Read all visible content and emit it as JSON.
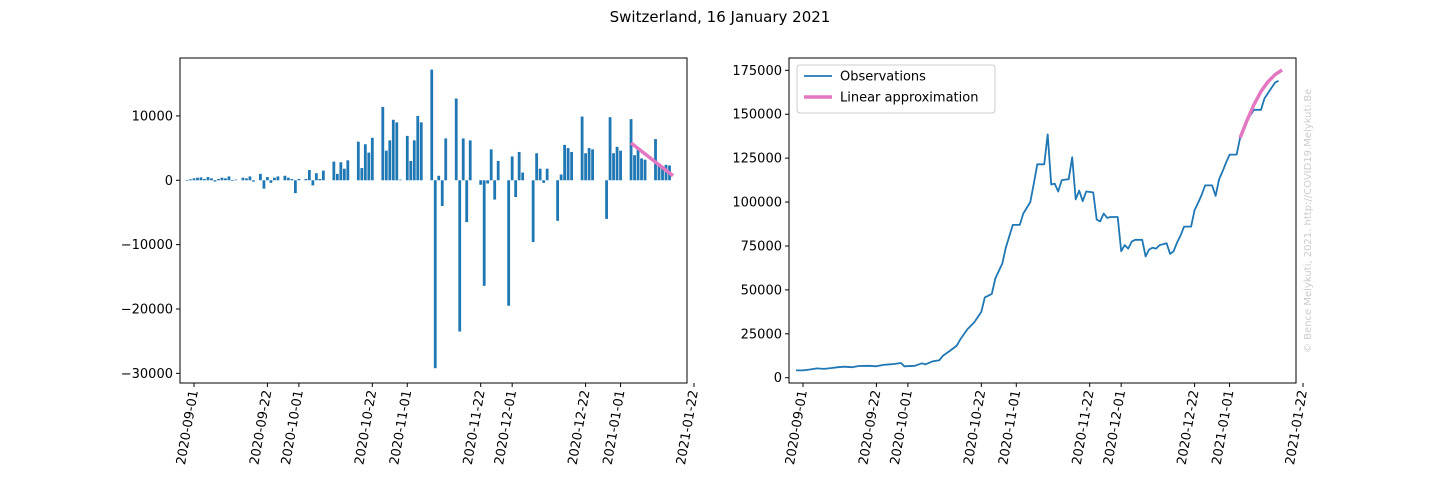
{
  "title": "Switzerland, 16 January 2021",
  "watermark": "© Bence Melykuti, 2021. http://COVID19.Melykuti.Be",
  "colors": {
    "observations": "#1f77b4",
    "approximation": "#e377c2",
    "axis": "#000000",
    "watermark": "#cccccc"
  },
  "chart_data": [
    {
      "type": "bar",
      "title": "",
      "xlabel": "",
      "ylabel": "",
      "xlim": [
        "2020-08-28",
        "2021-01-20"
      ],
      "ylim": [
        -31500,
        19000
      ],
      "xticks": [
        "2020-09-01",
        "2020-09-22",
        "2020-10-01",
        "2020-10-22",
        "2020-11-01",
        "2020-11-22",
        "2020-12-01",
        "2020-12-22",
        "2021-01-01",
        "2021-01-22"
      ],
      "yticks": [
        -30000,
        -20000,
        -10000,
        0,
        10000
      ],
      "ytick_labels": [
        "−30000",
        "−20000",
        "−10000",
        "0",
        "10000"
      ],
      "bars": [
        [
          "2020-08-30",
          -100
        ],
        [
          "2020-08-31",
          150
        ],
        [
          "2020-09-01",
          300
        ],
        [
          "2020-09-02",
          400
        ],
        [
          "2020-09-03",
          450
        ],
        [
          "2020-09-04",
          200
        ],
        [
          "2020-09-05",
          500
        ],
        [
          "2020-09-06",
          300
        ],
        [
          "2020-09-07",
          -200
        ],
        [
          "2020-09-08",
          200
        ],
        [
          "2020-09-09",
          400
        ],
        [
          "2020-09-10",
          300
        ],
        [
          "2020-09-11",
          600
        ],
        [
          "2020-09-12",
          -100
        ],
        [
          "2020-09-13",
          100
        ],
        [
          "2020-09-15",
          400
        ],
        [
          "2020-09-16",
          300
        ],
        [
          "2020-09-17",
          600
        ],
        [
          "2020-09-18",
          -200
        ],
        [
          "2020-09-20",
          1000
        ],
        [
          "2020-09-21",
          -1300
        ],
        [
          "2020-09-22",
          500
        ],
        [
          "2020-09-23",
          -400
        ],
        [
          "2020-09-24",
          400
        ],
        [
          "2020-09-25",
          600
        ],
        [
          "2020-09-27",
          700
        ],
        [
          "2020-09-28",
          400
        ],
        [
          "2020-09-29",
          200
        ],
        [
          "2020-09-30",
          -2000
        ],
        [
          "2020-10-01",
          200
        ],
        [
          "2020-10-03",
          200
        ],
        [
          "2020-10-04",
          1600
        ],
        [
          "2020-10-05",
          -800
        ],
        [
          "2020-10-06",
          1100
        ],
        [
          "2020-10-07",
          200
        ],
        [
          "2020-10-08",
          1500
        ],
        [
          "2020-10-11",
          2900
        ],
        [
          "2020-10-12",
          1000
        ],
        [
          "2020-10-13",
          2800
        ],
        [
          "2020-10-14",
          1800
        ],
        [
          "2020-10-15",
          3100
        ],
        [
          "2020-10-18",
          6000
        ],
        [
          "2020-10-19",
          1900
        ],
        [
          "2020-10-20",
          5600
        ],
        [
          "2020-10-21",
          4300
        ],
        [
          "2020-10-22",
          6600
        ],
        [
          "2020-10-25",
          11400
        ],
        [
          "2020-10-26",
          4600
        ],
        [
          "2020-10-27",
          6200
        ],
        [
          "2020-10-28",
          9400
        ],
        [
          "2020-10-29",
          9000
        ],
        [
          "2020-10-30",
          100
        ],
        [
          "2020-11-01",
          6900
        ],
        [
          "2020-11-02",
          3000
        ],
        [
          "2020-11-03",
          6200
        ],
        [
          "2020-11-04",
          10000
        ],
        [
          "2020-11-05",
          9000
        ],
        [
          "2020-11-08",
          17200
        ],
        [
          "2020-11-09",
          -29200
        ],
        [
          "2020-11-10",
          700
        ],
        [
          "2020-11-11",
          -4000
        ],
        [
          "2020-11-12",
          6500
        ],
        [
          "2020-11-15",
          12700
        ],
        [
          "2020-11-16",
          -23500
        ],
        [
          "2020-11-17",
          6500
        ],
        [
          "2020-11-18",
          -6500
        ],
        [
          "2020-11-19",
          6200
        ],
        [
          "2020-11-22",
          -700
        ],
        [
          "2020-11-23",
          -16400
        ],
        [
          "2020-11-24",
          -500
        ],
        [
          "2020-11-25",
          4800
        ],
        [
          "2020-11-26",
          -3000
        ],
        [
          "2020-11-27",
          3000
        ],
        [
          "2020-11-30",
          -19500
        ],
        [
          "2020-12-01",
          3700
        ],
        [
          "2020-12-02",
          -2600
        ],
        [
          "2020-12-03",
          4400
        ],
        [
          "2020-12-04",
          1200
        ],
        [
          "2020-12-07",
          -9600
        ],
        [
          "2020-12-08",
          4200
        ],
        [
          "2020-12-09",
          1800
        ],
        [
          "2020-12-10",
          -400
        ],
        [
          "2020-12-11",
          1800
        ],
        [
          "2020-12-14",
          -6300
        ],
        [
          "2020-12-15",
          900
        ],
        [
          "2020-12-16",
          5500
        ],
        [
          "2020-12-17",
          5000
        ],
        [
          "2020-12-18",
          4400
        ],
        [
          "2020-12-21",
          9900
        ],
        [
          "2020-12-22",
          4200
        ],
        [
          "2020-12-23",
          5000
        ],
        [
          "2020-12-24",
          4800
        ],
        [
          "2020-12-28",
          -6000
        ],
        [
          "2020-12-29",
          9800
        ],
        [
          "2020-12-30",
          4200
        ],
        [
          "2020-12-31",
          5200
        ],
        [
          "2021-01-01",
          4600
        ],
        [
          "2021-01-04",
          9500
        ],
        [
          "2021-01-05",
          3900
        ],
        [
          "2021-01-06",
          4900
        ],
        [
          "2021-01-07",
          3400
        ],
        [
          "2021-01-08",
          3200
        ],
        [
          "2021-01-11",
          6400
        ],
        [
          "2021-01-12",
          2600
        ],
        [
          "2021-01-13",
          2200
        ],
        [
          "2021-01-14",
          2400
        ],
        [
          "2021-01-15",
          2300
        ]
      ],
      "line": {
        "name": "Linear approximation",
        "x": [
          "2021-01-04",
          "2021-01-16"
        ],
        "y": [
          5800,
          700
        ]
      }
    },
    {
      "type": "line",
      "title": "",
      "xlabel": "",
      "ylabel": "",
      "xlim": [
        "2020-08-28",
        "2021-01-20"
      ],
      "ylim": [
        -3000,
        182000
      ],
      "xticks": [
        "2020-09-01",
        "2020-09-22",
        "2020-10-01",
        "2020-10-22",
        "2020-11-01",
        "2020-11-22",
        "2020-12-01",
        "2020-12-22",
        "2021-01-01",
        "2021-01-22"
      ],
      "yticks": [
        0,
        25000,
        50000,
        75000,
        100000,
        125000,
        150000,
        175000
      ],
      "legend": "top-left",
      "series": [
        {
          "name": "Observations",
          "points": [
            [
              "2020-08-30",
              4200
            ],
            [
              "2020-09-01",
              4200
            ],
            [
              "2020-09-03",
              4700
            ],
            [
              "2020-09-05",
              5300
            ],
            [
              "2020-09-07",
              5000
            ],
            [
              "2020-09-09",
              5500
            ],
            [
              "2020-09-11",
              6000
            ],
            [
              "2020-09-13",
              6300
            ],
            [
              "2020-09-15",
              6000
            ],
            [
              "2020-09-17",
              6700
            ],
            [
              "2020-09-20",
              6800
            ],
            [
              "2020-09-22",
              6500
            ],
            [
              "2020-09-24",
              7300
            ],
            [
              "2020-09-27",
              7800
            ],
            [
              "2020-09-29",
              8400
            ],
            [
              "2020-09-30",
              6500
            ],
            [
              "2020-10-03",
              6800
            ],
            [
              "2020-10-05",
              8200
            ],
            [
              "2020-10-06",
              7600
            ],
            [
              "2020-10-08",
              9300
            ],
            [
              "2020-10-10",
              10000
            ],
            [
              "2020-10-11",
              12400
            ],
            [
              "2020-10-13",
              15300
            ],
            [
              "2020-10-15",
              18300
            ],
            [
              "2020-10-16",
              21800
            ],
            [
              "2020-10-18",
              27500
            ],
            [
              "2020-10-20",
              31600
            ],
            [
              "2020-10-22",
              37500
            ],
            [
              "2020-10-23",
              45700
            ],
            [
              "2020-10-25",
              47700
            ],
            [
              "2020-10-26",
              56500
            ],
            [
              "2020-10-28",
              65000
            ],
            [
              "2020-10-29",
              74000
            ],
            [
              "2020-10-31",
              87000
            ],
            [
              "2020-11-02",
              87000
            ],
            [
              "2020-11-03",
              93500
            ],
            [
              "2020-11-05",
              100000
            ],
            [
              "2020-11-06",
              110500
            ],
            [
              "2020-11-07",
              121500
            ],
            [
              "2020-11-09",
              121500
            ],
            [
              "2020-11-10",
              138500
            ],
            [
              "2020-11-11",
              110000
            ],
            [
              "2020-11-12",
              110500
            ],
            [
              "2020-11-13",
              106000
            ],
            [
              "2020-11-14",
              112500
            ],
            [
              "2020-11-16",
              113000
            ],
            [
              "2020-11-17",
              125500
            ],
            [
              "2020-11-18",
              101500
            ],
            [
              "2020-11-19",
              106500
            ],
            [
              "2020-11-20",
              100500
            ],
            [
              "2020-11-21",
              106000
            ],
            [
              "2020-11-23",
              105500
            ],
            [
              "2020-11-24",
              90000
            ],
            [
              "2020-11-25",
              89000
            ],
            [
              "2020-11-26",
              93500
            ],
            [
              "2020-11-27",
              91000
            ],
            [
              "2020-11-28",
              91500
            ],
            [
              "2020-11-30",
              91500
            ],
            [
              "2020-12-01",
              72000
            ],
            [
              "2020-12-02",
              75500
            ],
            [
              "2020-12-03",
              73500
            ],
            [
              "2020-12-04",
              77500
            ],
            [
              "2020-12-05",
              78500
            ],
            [
              "2020-12-07",
              78500
            ],
            [
              "2020-12-08",
              69000
            ],
            [
              "2020-12-09",
              73000
            ],
            [
              "2020-12-10",
              74000
            ],
            [
              "2020-12-11",
              73500
            ],
            [
              "2020-12-12",
              75500
            ],
            [
              "2020-12-14",
              76500
            ],
            [
              "2020-12-15",
              70500
            ],
            [
              "2020-12-16",
              72000
            ],
            [
              "2020-12-17",
              77000
            ],
            [
              "2020-12-18",
              81000
            ],
            [
              "2020-12-19",
              86000
            ],
            [
              "2020-12-21",
              86000
            ],
            [
              "2020-12-22",
              95500
            ],
            [
              "2020-12-23",
              99500
            ],
            [
              "2020-12-24",
              104000
            ],
            [
              "2020-12-25",
              109500
            ],
            [
              "2020-12-27",
              109500
            ],
            [
              "2020-12-28",
              103500
            ],
            [
              "2020-12-29",
              113000
            ],
            [
              "2020-12-30",
              117500
            ],
            [
              "2020-12-31",
              122500
            ],
            [
              "2021-01-01",
              127000
            ],
            [
              "2021-01-03",
              127000
            ],
            [
              "2021-01-04",
              136500
            ],
            [
              "2021-01-05",
              141000
            ],
            [
              "2021-01-06",
              146000
            ],
            [
              "2021-01-07",
              149500
            ],
            [
              "2021-01-08",
              152500
            ],
            [
              "2021-01-10",
              152500
            ],
            [
              "2021-01-11",
              159000
            ],
            [
              "2021-01-12",
              162000
            ],
            [
              "2021-01-13",
              165000
            ],
            [
              "2021-01-14",
              168000
            ],
            [
              "2021-01-15",
              169000
            ]
          ]
        },
        {
          "name": "Linear approximation",
          "points": [
            [
              "2021-01-04",
              136500
            ],
            [
              "2021-01-06",
              146500
            ],
            [
              "2021-01-08",
              155500
            ],
            [
              "2021-01-10",
              163000
            ],
            [
              "2021-01-12",
              168500
            ],
            [
              "2021-01-14",
              172500
            ],
            [
              "2021-01-16",
              175200
            ]
          ]
        }
      ]
    }
  ]
}
